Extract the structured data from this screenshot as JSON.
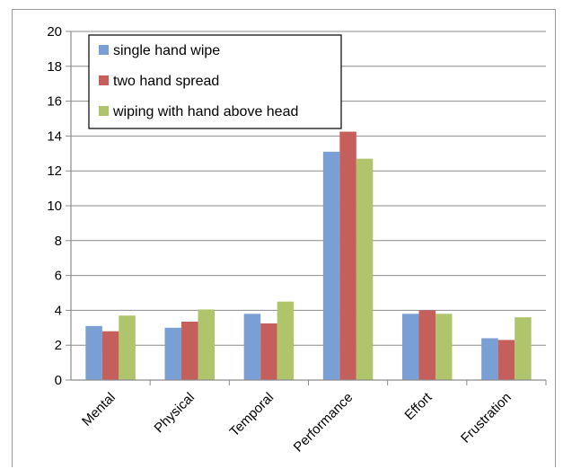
{
  "chart_data": {
    "type": "bar",
    "categories": [
      "Mental",
      "Physical",
      "Temporal",
      "Performance",
      "Effort",
      "Frustration"
    ],
    "series": [
      {
        "name": "single hand wipe",
        "color": "#7a9fd4",
        "values": [
          3.1,
          3.0,
          3.8,
          13.1,
          3.8,
          2.4
        ]
      },
      {
        "name": "two hand spread",
        "color": "#c45f5c",
        "values": [
          2.8,
          3.35,
          3.25,
          14.25,
          4.0,
          2.3
        ]
      },
      {
        "name": "wiping with hand above head",
        "color": "#afc46b",
        "values": [
          3.7,
          4.05,
          4.5,
          12.7,
          3.8,
          3.6
        ]
      }
    ],
    "ylim": [
      0,
      20
    ],
    "yticks": [
      0,
      2,
      4,
      6,
      8,
      10,
      12,
      14,
      16,
      18,
      20
    ],
    "grid": true,
    "legend_position": "top-left",
    "title": "",
    "xlabel": "",
    "ylabel": ""
  }
}
